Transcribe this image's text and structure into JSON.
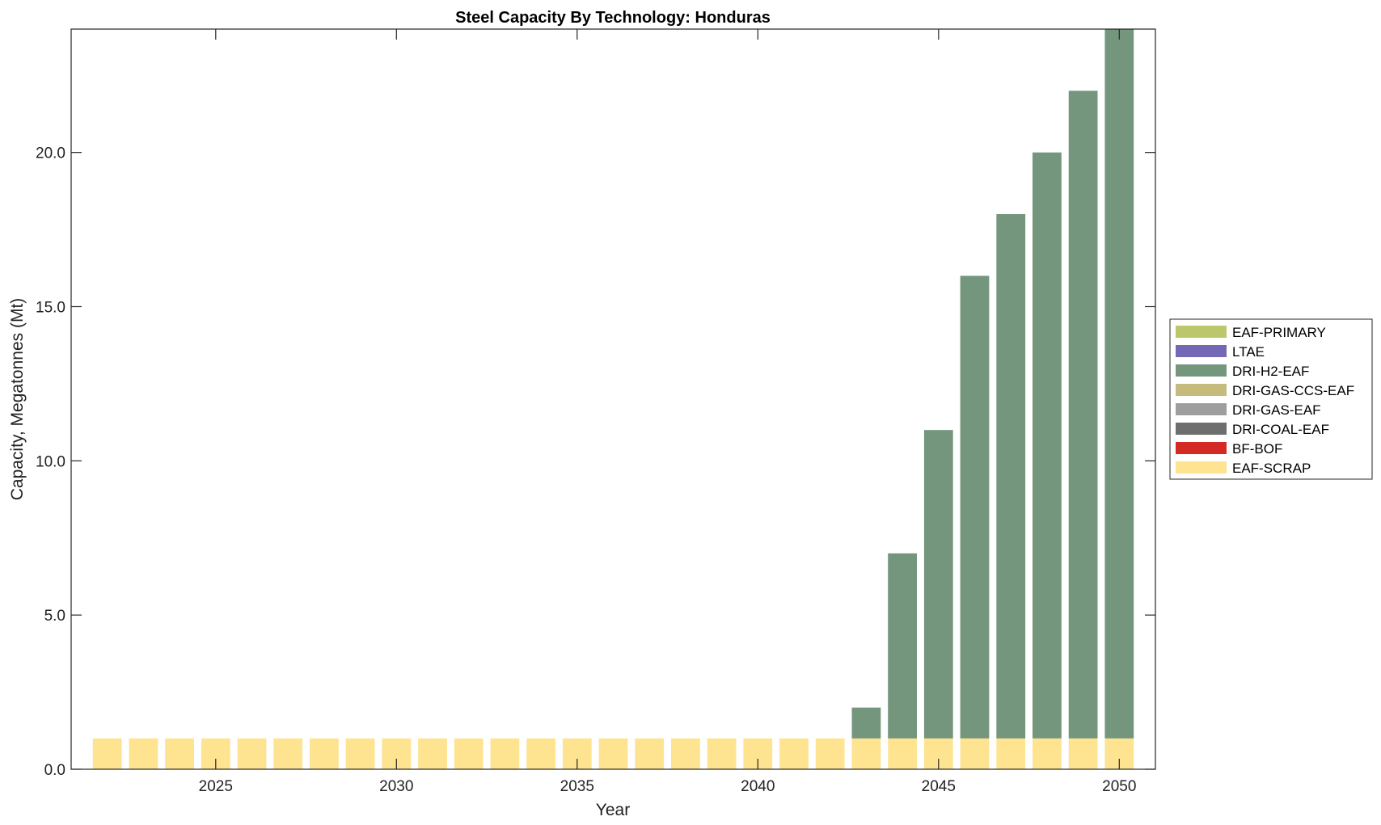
{
  "chart_data": {
    "type": "bar",
    "stacked": true,
    "title": "Steel Capacity By Technology: Honduras",
    "xlabel": "Year",
    "ylabel": "Capacity, Megatonnes (Mt)",
    "xlim": [
      2021,
      2051
    ],
    "ylim": [
      0,
      24
    ],
    "xticks": [
      2025,
      2030,
      2035,
      2040,
      2045,
      2050
    ],
    "xtick_labels": [
      "2025",
      "2030",
      "2035",
      "2040",
      "2045",
      "2050"
    ],
    "yticks": [
      0,
      5,
      10,
      15,
      20
    ],
    "ytick_labels": [
      "0.0",
      "5.0",
      "10.0",
      "15.0",
      "20.0"
    ],
    "grid": false,
    "legend_position": "right-outside",
    "x": [
      2022,
      2023,
      2024,
      2025,
      2026,
      2027,
      2028,
      2029,
      2030,
      2031,
      2032,
      2033,
      2034,
      2035,
      2036,
      2037,
      2038,
      2039,
      2040,
      2041,
      2042,
      2043,
      2044,
      2045,
      2046,
      2047,
      2048,
      2049,
      2050
    ],
    "series": [
      {
        "name": "EAF-SCRAP",
        "color": "#fee391",
        "values": [
          1,
          1,
          1,
          1,
          1,
          1,
          1,
          1,
          1,
          1,
          1,
          1,
          1,
          1,
          1,
          1,
          1,
          1,
          1,
          1,
          1,
          1,
          1,
          1,
          1,
          1,
          1,
          1,
          1
        ]
      },
      {
        "name": "BF-BOF",
        "color": "#d42a25",
        "values": [
          0,
          0,
          0,
          0,
          0,
          0,
          0,
          0,
          0,
          0,
          0,
          0,
          0,
          0,
          0,
          0,
          0,
          0,
          0,
          0,
          0,
          0,
          0,
          0,
          0,
          0,
          0,
          0,
          0
        ]
      },
      {
        "name": "DRI-COAL-EAF",
        "color": "#6e6e6e",
        "values": [
          0,
          0,
          0,
          0,
          0,
          0,
          0,
          0,
          0,
          0,
          0,
          0,
          0,
          0,
          0,
          0,
          0,
          0,
          0,
          0,
          0,
          0,
          0,
          0,
          0,
          0,
          0,
          0,
          0
        ]
      },
      {
        "name": "DRI-GAS-EAF",
        "color": "#9e9e9e",
        "values": [
          0,
          0,
          0,
          0,
          0,
          0,
          0,
          0,
          0,
          0,
          0,
          0,
          0,
          0,
          0,
          0,
          0,
          0,
          0,
          0,
          0,
          0,
          0,
          0,
          0,
          0,
          0,
          0,
          0
        ]
      },
      {
        "name": "DRI-GAS-CCS-EAF",
        "color": "#c4bb7d",
        "values": [
          0,
          0,
          0,
          0,
          0,
          0,
          0,
          0,
          0,
          0,
          0,
          0,
          0,
          0,
          0,
          0,
          0,
          0,
          0,
          0,
          0,
          0,
          0,
          0,
          0,
          0,
          0,
          0,
          0
        ]
      },
      {
        "name": "DRI-H2-EAF",
        "color": "#74967c",
        "values": [
          0,
          0,
          0,
          0,
          0,
          0,
          0,
          0,
          0,
          0,
          0,
          0,
          0,
          0,
          0,
          0,
          0,
          0,
          0,
          0,
          0,
          1,
          6,
          10,
          15,
          17,
          19,
          21,
          23
        ]
      },
      {
        "name": "LTAE",
        "color": "#7467b5",
        "values": [
          0,
          0,
          0,
          0,
          0,
          0,
          0,
          0,
          0,
          0,
          0,
          0,
          0,
          0,
          0,
          0,
          0,
          0,
          0,
          0,
          0,
          0,
          0,
          0,
          0,
          0,
          0,
          0,
          0
        ]
      },
      {
        "name": "EAF-PRIMARY",
        "color": "#bcc66a",
        "values": [
          0,
          0,
          0,
          0,
          0,
          0,
          0,
          0,
          0,
          0,
          0,
          0,
          0,
          0,
          0,
          0,
          0,
          0,
          0,
          0,
          0,
          0,
          0,
          0,
          0,
          0,
          0,
          0,
          0
        ]
      }
    ],
    "legend_order": [
      "EAF-PRIMARY",
      "LTAE",
      "DRI-H2-EAF",
      "DRI-GAS-CCS-EAF",
      "DRI-GAS-EAF",
      "DRI-COAL-EAF",
      "BF-BOF",
      "EAF-SCRAP"
    ]
  }
}
